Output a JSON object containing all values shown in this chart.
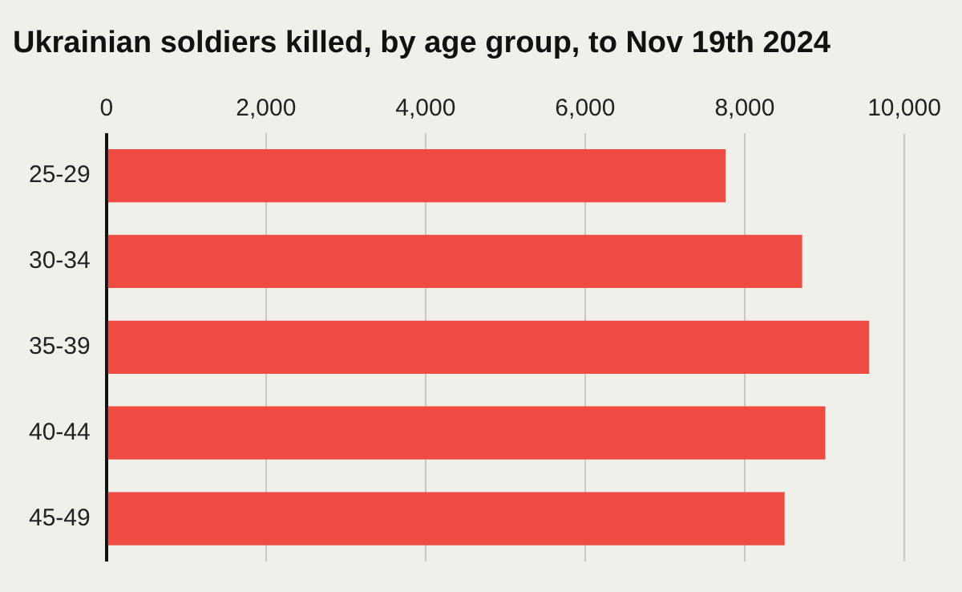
{
  "chart_data": {
    "type": "bar",
    "orientation": "horizontal",
    "title": "Ukrainian soldiers killed, by age group, to Nov 19th 2024",
    "categories": [
      "25-29",
      "30-34",
      "35-39",
      "40-44",
      "45-49"
    ],
    "values": [
      7760,
      8720,
      9560,
      9010,
      8500
    ],
    "color": "#ee4b43",
    "xlim": [
      0,
      10000
    ],
    "xticks": [
      0,
      {
        "value": 2000,
        "label": "2,000"
      },
      {
        "value": 4000,
        "label": "4,000"
      },
      {
        "value": 6000,
        "label": "6,000"
      },
      {
        "value": 8000,
        "label": "8,000"
      },
      {
        "value": 10000,
        "label": "10,000"
      }
    ],
    "grid": "x",
    "legend": false
  }
}
